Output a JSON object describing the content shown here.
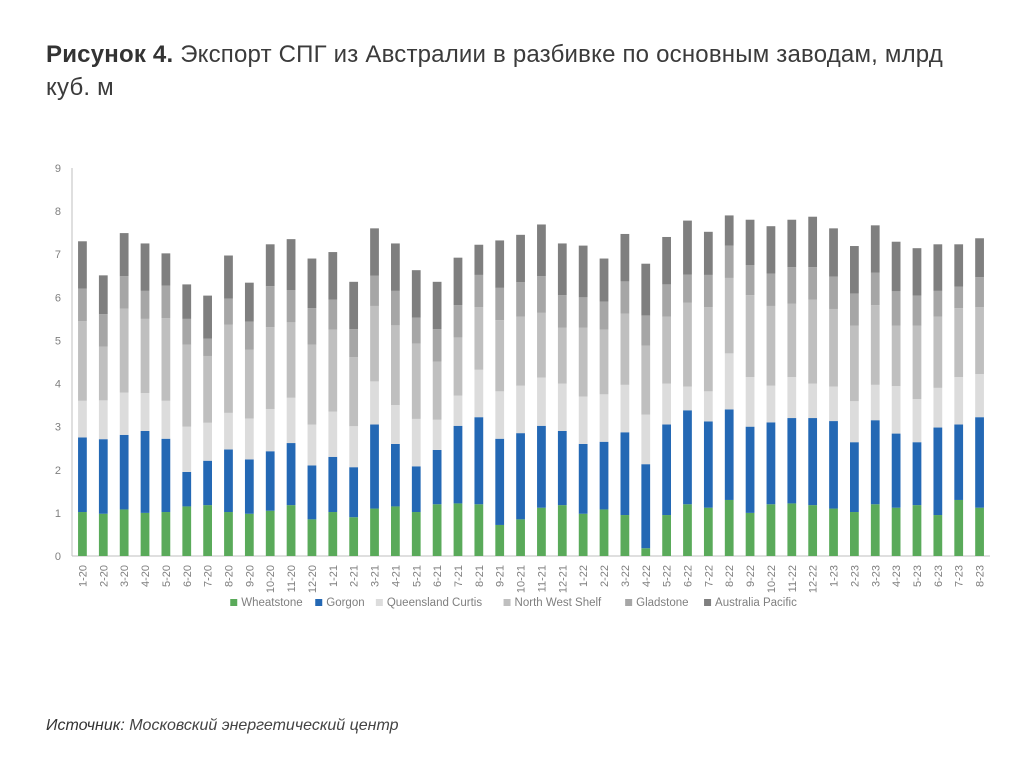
{
  "header": {
    "figure_label": "Рисунок 4.",
    "title_text": "Экспорт СПГ из Австралии в разбивке по основным заводам, млрд куб. м"
  },
  "footer": {
    "source_label": "Источник:",
    "source_text": "Московский энергетический центр"
  },
  "chart_data": {
    "type": "bar",
    "stacked": true,
    "ylim": [
      0,
      9
    ],
    "yticks": [
      0,
      1,
      2,
      3,
      4,
      5,
      6,
      7,
      8,
      9
    ],
    "grid": false,
    "legend_position": "bottom",
    "categories": [
      "1-20",
      "2-20",
      "3-20",
      "4-20",
      "5-20",
      "6-20",
      "7-20",
      "8-20",
      "9-20",
      "10-20",
      "11-20",
      "12-20",
      "1-21",
      "2-21",
      "3-21",
      "4-21",
      "5-21",
      "6-21",
      "7-21",
      "8-21",
      "9-21",
      "10-21",
      "11-21",
      "12-21",
      "1-22",
      "2-22",
      "3-22",
      "4-22",
      "5-22",
      "6-22",
      "7-22",
      "8-22",
      "9-22",
      "10-22",
      "11-22",
      "12-22",
      "1-23",
      "2-23",
      "3-23",
      "4-23",
      "5-23",
      "6-23",
      "7-23",
      "8-23"
    ],
    "series": [
      {
        "name": "Wheatstone",
        "color": "#5aaa5a",
        "values": [
          1.02,
          0.98,
          1.08,
          1.0,
          1.02,
          1.15,
          1.18,
          1.02,
          0.98,
          1.05,
          1.18,
          0.85,
          1.02,
          0.9,
          1.1,
          1.15,
          1.02,
          1.2,
          1.22,
          1.2,
          0.72,
          0.85,
          1.12,
          1.18,
          0.98,
          1.08,
          0.95,
          0.18,
          0.95,
          1.2,
          1.12,
          1.3,
          1.0,
          1.2,
          1.22,
          1.18,
          1.1,
          1.02,
          1.2,
          1.12,
          1.18,
          0.95,
          1.3,
          1.12
        ]
      },
      {
        "name": "Gorgon",
        "color": "#2468b4",
        "values": [
          1.73,
          1.73,
          1.73,
          1.9,
          1.7,
          0.8,
          1.03,
          1.45,
          1.26,
          1.38,
          1.44,
          1.25,
          1.28,
          1.16,
          1.95,
          1.45,
          1.06,
          1.26,
          1.8,
          2.02,
          2.0,
          2.0,
          1.9,
          1.72,
          1.62,
          1.57,
          1.92,
          1.95,
          2.1,
          2.18,
          2.0,
          2.1,
          2.0,
          1.9,
          1.98,
          2.02,
          2.03,
          1.62,
          1.95,
          1.72,
          1.46,
          2.03,
          1.75,
          2.1
        ]
      },
      {
        "name": "Queensland Curtis",
        "color": "#dcdcdc",
        "values": [
          0.85,
          0.9,
          0.98,
          0.88,
          0.88,
          1.05,
          0.88,
          0.85,
          0.95,
          0.98,
          1.05,
          0.95,
          1.05,
          0.95,
          1.0,
          0.9,
          1.1,
          0.7,
          0.7,
          1.1,
          1.1,
          1.1,
          1.12,
          1.1,
          1.1,
          1.1,
          1.1,
          1.15,
          0.95,
          0.55,
          0.7,
          1.3,
          1.15,
          0.85,
          0.95,
          0.8,
          0.8,
          0.95,
          0.82,
          1.1,
          1.0,
          0.92,
          1.1,
          1.0
        ]
      },
      {
        "name": "North West Shelf",
        "color": "#bfbfbf",
        "values": [
          1.85,
          1.25,
          1.95,
          1.72,
          1.92,
          1.9,
          1.55,
          2.05,
          1.6,
          1.9,
          1.75,
          1.85,
          1.9,
          1.6,
          1.75,
          1.85,
          1.75,
          1.35,
          1.35,
          1.45,
          1.65,
          1.6,
          1.5,
          1.3,
          1.6,
          1.5,
          1.65,
          1.6,
          1.55,
          1.95,
          1.95,
          1.75,
          1.9,
          1.85,
          1.7,
          1.95,
          1.8,
          1.75,
          1.85,
          1.4,
          1.7,
          1.65,
          1.6,
          1.55
        ]
      },
      {
        "name": "Gladstone",
        "color": "#a6a6a6",
        "values": [
          0.75,
          0.75,
          0.75,
          0.65,
          0.75,
          0.6,
          0.4,
          0.6,
          0.65,
          0.95,
          0.75,
          0.85,
          0.7,
          0.65,
          0.7,
          0.8,
          0.6,
          0.75,
          0.75,
          0.75,
          0.75,
          0.8,
          0.85,
          0.75,
          0.7,
          0.65,
          0.75,
          0.7,
          0.75,
          0.65,
          0.75,
          0.75,
          0.7,
          0.75,
          0.85,
          0.75,
          0.75,
          0.75,
          0.75,
          0.8,
          0.7,
          0.6,
          0.5,
          0.7
        ]
      },
      {
        "name": "Australia Pacific",
        "color": "#7f7f7f",
        "values": [
          1.1,
          0.9,
          1.0,
          1.1,
          0.75,
          0.8,
          1.0,
          1.0,
          0.9,
          0.97,
          1.18,
          1.15,
          1.1,
          1.1,
          1.1,
          1.1,
          1.1,
          1.1,
          1.1,
          0.7,
          1.1,
          1.1,
          1.2,
          1.2,
          1.2,
          1.0,
          1.1,
          1.2,
          1.1,
          1.25,
          1.0,
          0.7,
          1.05,
          1.1,
          1.1,
          1.17,
          1.12,
          1.1,
          1.1,
          1.15,
          1.1,
          1.08,
          0.98,
          0.9
        ]
      }
    ]
  }
}
